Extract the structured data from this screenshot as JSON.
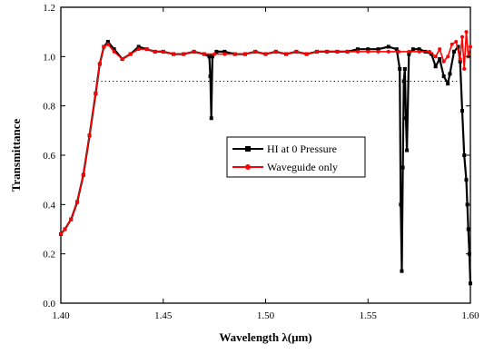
{
  "chart_data": {
    "type": "line",
    "xlabel": "Wavelength λ(μm)",
    "ylabel": "Transmittance",
    "xlim": [
      1.4,
      1.6
    ],
    "ylim": [
      0.0,
      1.2
    ],
    "x_ticks": [
      "1.40",
      "1.45",
      "1.50",
      "1.55",
      "1.60"
    ],
    "y_ticks": [
      "0.0",
      "0.2",
      "0.4",
      "0.6",
      "0.8",
      "1.0",
      "1.2"
    ],
    "x_tick_values": [
      1.4,
      1.45,
      1.5,
      1.55,
      1.6
    ],
    "y_tick_values": [
      0.0,
      0.2,
      0.4,
      0.6,
      0.8,
      1.0,
      1.2
    ],
    "reference_line": {
      "y": 0.9,
      "x_start": 1.416,
      "x_end": 1.596,
      "style": "dotted"
    },
    "legend": {
      "position": "center-right"
    },
    "series": [
      {
        "name": "HI at 0 Pressure",
        "color": "#000000",
        "marker": "square",
        "x": [
          1.4,
          1.402,
          1.405,
          1.408,
          1.411,
          1.414,
          1.417,
          1.419,
          1.421,
          1.423,
          1.426,
          1.43,
          1.434,
          1.438,
          1.442,
          1.446,
          1.45,
          1.455,
          1.46,
          1.465,
          1.47,
          1.4725,
          1.473,
          1.4735,
          1.474,
          1.476,
          1.48,
          1.485,
          1.49,
          1.495,
          1.5,
          1.505,
          1.51,
          1.515,
          1.52,
          1.525,
          1.53,
          1.535,
          1.54,
          1.545,
          1.55,
          1.555,
          1.56,
          1.564,
          1.5655,
          1.566,
          1.5665,
          1.567,
          1.5675,
          1.568,
          1.5685,
          1.569,
          1.57,
          1.572,
          1.575,
          1.578,
          1.581,
          1.583,
          1.585,
          1.587,
          1.589,
          1.59,
          1.592,
          1.594,
          1.595,
          1.596,
          1.597,
          1.598,
          1.5985,
          1.599,
          1.5995,
          1.6
        ],
        "y": [
          0.28,
          0.3,
          0.34,
          0.41,
          0.52,
          0.68,
          0.85,
          0.97,
          1.04,
          1.06,
          1.03,
          0.99,
          1.01,
          1.04,
          1.03,
          1.02,
          1.02,
          1.01,
          1.01,
          1.02,
          1.01,
          1.0,
          0.92,
          0.75,
          1.0,
          1.02,
          1.02,
          1.01,
          1.01,
          1.02,
          1.01,
          1.02,
          1.01,
          1.02,
          1.01,
          1.02,
          1.02,
          1.02,
          1.02,
          1.03,
          1.03,
          1.03,
          1.04,
          1.03,
          0.95,
          0.4,
          0.13,
          0.55,
          0.9,
          0.95,
          0.75,
          0.62,
          1.01,
          1.03,
          1.03,
          1.02,
          1.01,
          0.96,
          0.99,
          0.92,
          0.89,
          0.93,
          1.02,
          1.04,
          0.98,
          0.78,
          0.6,
          0.5,
          0.4,
          0.3,
          0.2,
          0.08
        ]
      },
      {
        "name": "Waveguide only",
        "color": "#ff0000",
        "marker": "circle",
        "x": [
          1.4,
          1.402,
          1.405,
          1.408,
          1.411,
          1.414,
          1.417,
          1.419,
          1.421,
          1.423,
          1.426,
          1.43,
          1.434,
          1.438,
          1.442,
          1.446,
          1.45,
          1.455,
          1.46,
          1.465,
          1.47,
          1.475,
          1.48,
          1.485,
          1.49,
          1.495,
          1.5,
          1.505,
          1.51,
          1.515,
          1.52,
          1.525,
          1.53,
          1.535,
          1.54,
          1.545,
          1.55,
          1.555,
          1.56,
          1.565,
          1.57,
          1.575,
          1.58,
          1.583,
          1.585,
          1.587,
          1.589,
          1.591,
          1.593,
          1.595,
          1.596,
          1.597,
          1.598,
          1.599,
          1.6
        ],
        "y": [
          0.28,
          0.3,
          0.34,
          0.41,
          0.52,
          0.68,
          0.85,
          0.97,
          1.04,
          1.05,
          1.02,
          0.99,
          1.01,
          1.03,
          1.03,
          1.02,
          1.02,
          1.01,
          1.01,
          1.02,
          1.01,
          1.01,
          1.01,
          1.01,
          1.01,
          1.02,
          1.01,
          1.02,
          1.01,
          1.02,
          1.01,
          1.02,
          1.02,
          1.02,
          1.02,
          1.02,
          1.02,
          1.02,
          1.02,
          1.02,
          1.02,
          1.02,
          1.02,
          1.0,
          1.03,
          0.98,
          1.0,
          1.05,
          1.06,
          0.99,
          1.08,
          0.95,
          1.1,
          1.0,
          1.04
        ]
      }
    ]
  }
}
